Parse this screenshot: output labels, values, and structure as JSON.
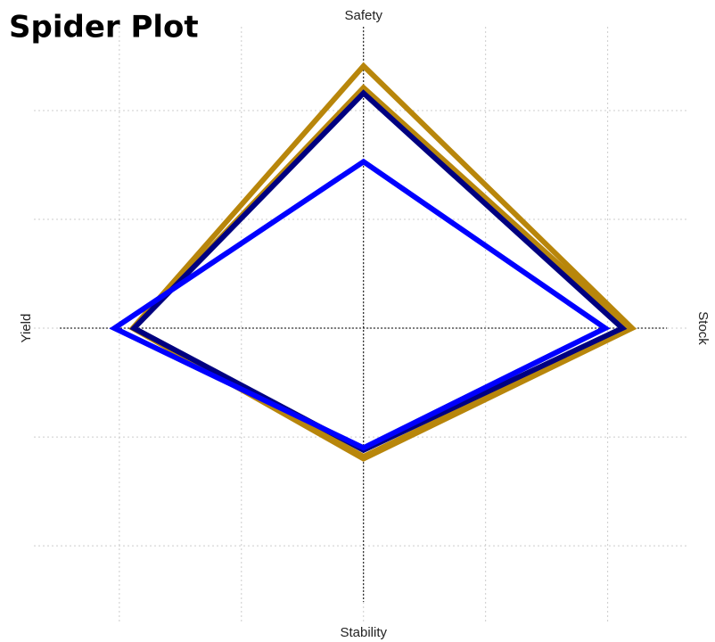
{
  "chart_data": {
    "type": "radar",
    "title": "Spider Plot",
    "categories": [
      "Safety",
      "Stock",
      "Stability",
      "Yield"
    ],
    "series": [
      {
        "color": "#b8860b",
        "values": [
          2.41,
          2.2,
          1.2,
          1.89
        ]
      },
      {
        "color": "#b8860b",
        "values": [
          2.21,
          2.18,
          1.18,
          1.88
        ]
      },
      {
        "color": "#000080",
        "values": [
          2.16,
          2.12,
          1.12,
          1.88
        ]
      },
      {
        "color": "#0000ff",
        "values": [
          1.53,
          1.98,
          1.1,
          2.04
        ]
      }
    ],
    "xlim": [
      -2.7,
      2.66
    ],
    "ylim": [
      -2.72,
      2.77
    ],
    "xticks": [
      -2,
      -1,
      0,
      1,
      2
    ],
    "yticks": [
      -2,
      -1,
      0,
      1,
      2
    ],
    "grid": true
  }
}
